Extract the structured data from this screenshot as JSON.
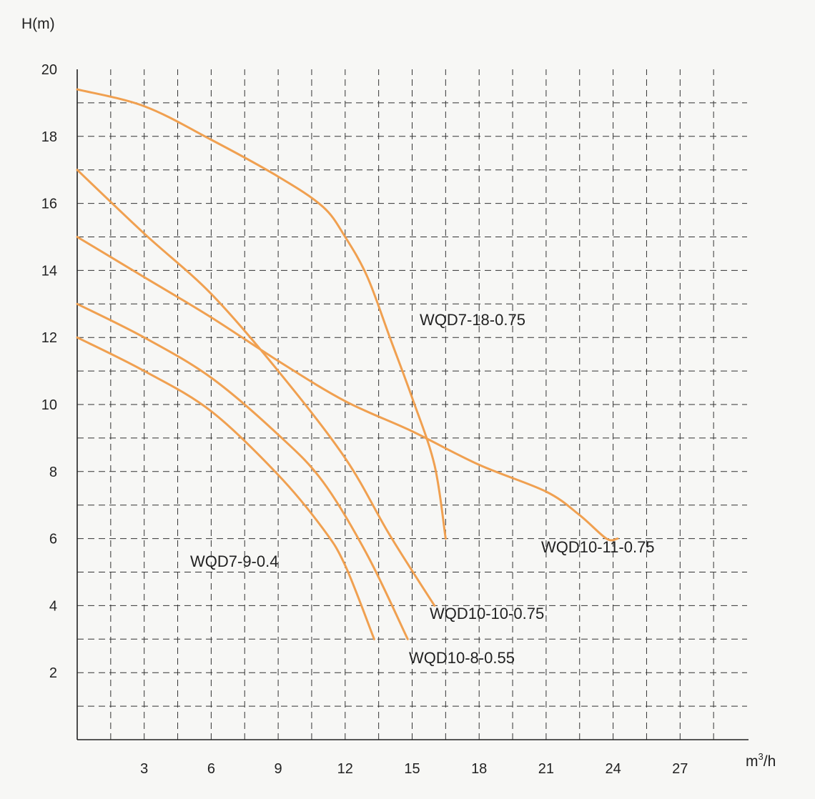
{
  "chart_data": {
    "type": "line",
    "title": "",
    "ylabel": "H(m)",
    "xlabel_base": "m",
    "xlabel_sup": "3",
    "xlabel_tail": "/h",
    "xlim": [
      0,
      30
    ],
    "ylim": [
      0,
      20
    ],
    "x_ticks": [
      "3",
      "6",
      "9",
      "12",
      "15",
      "18",
      "21",
      "24",
      "27"
    ],
    "y_ticks": [
      "2",
      "4",
      "6",
      "8",
      "10",
      "12",
      "14",
      "16",
      "18",
      "20"
    ],
    "grid": true,
    "curve_color": "#f0a050",
    "series": [
      {
        "name": "WQD7-18-0.75",
        "points": [
          [
            0,
            19.4
          ],
          [
            3,
            18.9
          ],
          [
            6,
            17.9
          ],
          [
            9,
            16.8
          ],
          [
            11,
            15.9
          ],
          [
            12,
            15
          ],
          [
            13,
            13.8
          ],
          [
            14,
            12
          ],
          [
            15,
            10.2
          ],
          [
            16,
            8.2
          ],
          [
            16.5,
            6
          ]
        ]
      },
      {
        "name": "WQD10-11-0.75",
        "points": [
          [
            0,
            15
          ],
          [
            3,
            13.8
          ],
          [
            6,
            12.6
          ],
          [
            9,
            11.3
          ],
          [
            12,
            10.1
          ],
          [
            15,
            9.2
          ],
          [
            18,
            8.2
          ],
          [
            21,
            7.4
          ],
          [
            22.5,
            6.7
          ],
          [
            23.7,
            6
          ],
          [
            24.2,
            6
          ]
        ]
      },
      {
        "name": "WQD10-10-0.75",
        "points": [
          [
            0,
            17
          ],
          [
            3,
            15.1
          ],
          [
            6,
            13.3
          ],
          [
            9,
            11
          ],
          [
            12,
            8.4
          ],
          [
            14,
            6.1
          ],
          [
            16,
            4
          ]
        ]
      },
      {
        "name": "WQD10-8-0.55",
        "points": [
          [
            0,
            13
          ],
          [
            3,
            12
          ],
          [
            6,
            10.8
          ],
          [
            9,
            9.1
          ],
          [
            11,
            7.7
          ],
          [
            13,
            5.5
          ],
          [
            14.8,
            3
          ]
        ]
      },
      {
        "name": "WQD7-9-0.4",
        "points": [
          [
            0,
            12
          ],
          [
            3,
            11
          ],
          [
            6,
            9.8
          ],
          [
            9,
            7.9
          ],
          [
            11,
            6.3
          ],
          [
            12,
            5.2
          ],
          [
            13.3,
            3
          ]
        ]
      }
    ]
  }
}
